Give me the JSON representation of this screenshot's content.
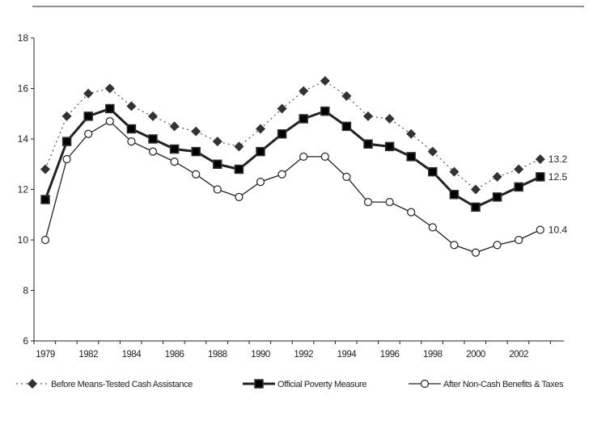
{
  "chart_data": {
    "type": "line",
    "title": "",
    "xlabel": "",
    "ylabel": "",
    "ylim": [
      6,
      18
    ],
    "yticks": [
      6,
      8,
      10,
      12,
      14,
      16,
      18
    ],
    "grid": false,
    "legend_position": "bottom",
    "x_index": [
      0,
      1,
      2,
      3,
      4,
      5,
      6,
      7,
      8,
      9,
      10,
      11,
      12,
      13,
      14,
      15,
      16,
      17,
      18,
      19,
      20,
      21,
      22,
      23
    ],
    "xtick_labels": [
      {
        "label": "1979",
        "index": 0
      },
      {
        "label": "1982",
        "index": 2
      },
      {
        "label": "1984",
        "index": 4
      },
      {
        "label": "1986",
        "index": 6
      },
      {
        "label": "1988",
        "index": 8
      },
      {
        "label": "1990",
        "index": 10
      },
      {
        "label": "1992",
        "index": 12
      },
      {
        "label": "1994",
        "index": 14
      },
      {
        "label": "1996",
        "index": 16
      },
      {
        "label": "1998",
        "index": 18
      },
      {
        "label": "2000",
        "index": 20
      },
      {
        "label": "2002",
        "index": 22
      }
    ],
    "series": [
      {
        "name": "Before Means-Tested Cash Assistance",
        "style": "dotted-diamond",
        "color": "#333333",
        "values": [
          12.8,
          14.9,
          15.8,
          16.0,
          15.3,
          14.9,
          14.5,
          14.3,
          13.9,
          13.7,
          14.4,
          15.2,
          15.9,
          16.3,
          15.7,
          14.9,
          14.8,
          14.2,
          13.5,
          12.7,
          12.0,
          12.5,
          12.8,
          13.2
        ],
        "end_label": "13.2"
      },
      {
        "name": "Official Poverty Measure",
        "style": "thick-square",
        "color": "#222222",
        "values": [
          11.6,
          13.9,
          14.9,
          15.2,
          14.4,
          14.0,
          13.6,
          13.5,
          13.0,
          12.8,
          13.5,
          14.2,
          14.8,
          15.1,
          14.5,
          13.8,
          13.7,
          13.3,
          12.7,
          11.8,
          11.3,
          11.7,
          12.1,
          12.5
        ],
        "end_label": "12.5"
      },
      {
        "name": "After Non-Cash Benefits & Taxes",
        "style": "thin-circle",
        "color": "#222222",
        "values": [
          10.0,
          13.2,
          14.2,
          14.7,
          13.9,
          13.5,
          13.1,
          12.6,
          12.0,
          11.7,
          12.3,
          12.6,
          13.3,
          13.3,
          12.5,
          11.5,
          11.5,
          11.1,
          10.5,
          9.8,
          9.5,
          9.8,
          10.0,
          10.4
        ],
        "end_label": "10.4"
      }
    ]
  }
}
